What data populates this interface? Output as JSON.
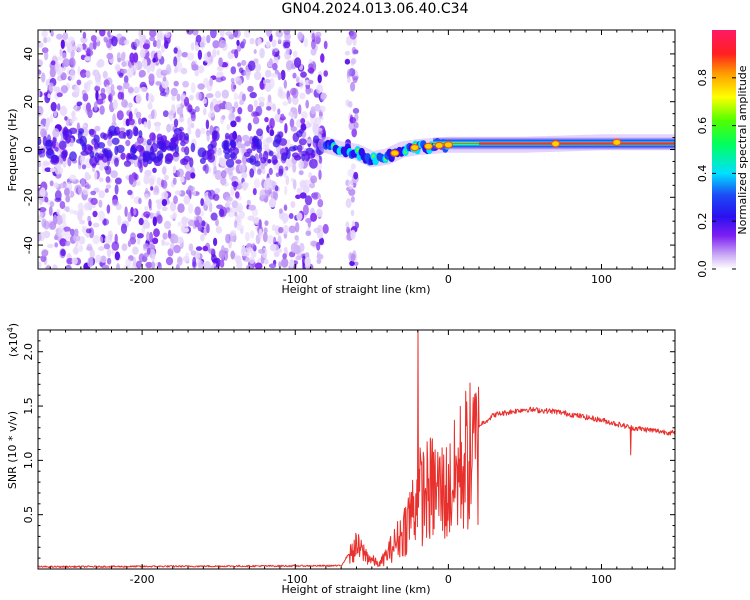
{
  "title": "GN04.2024.013.06.40.C34",
  "chart_data": [
    {
      "type": "heatmap",
      "xlabel": "Height of straight line (km)",
      "ylabel": "Frequency (Hz)",
      "xlim": [
        -268,
        148
      ],
      "ylim": [
        -50,
        50
      ],
      "x_ticks": [
        -200,
        -100,
        0,
        100
      ],
      "y_ticks": [
        -40,
        -20,
        0,
        20,
        40
      ],
      "colorbar": {
        "label": "Normalized spectral amplitude",
        "range": [
          0,
          1
        ],
        "ticks": [
          0.0,
          0.2,
          0.4,
          0.6,
          0.8
        ]
      },
      "features": {
        "noise_region_x": [
          -268,
          -80
        ],
        "isolated_noise_band_x": [
          -66,
          -60
        ],
        "carrier_track": [
          {
            "x": -80,
            "y": 2
          },
          {
            "x": -70,
            "y": 0
          },
          {
            "x": -60,
            "y": -1
          },
          {
            "x": -50,
            "y": -4
          },
          {
            "x": -40,
            "y": -3
          },
          {
            "x": -30,
            "y": 0
          },
          {
            "x": -20,
            "y": 1
          },
          {
            "x": 0,
            "y": 2
          },
          {
            "x": 50,
            "y": 2
          },
          {
            "x": 100,
            "y": 3
          },
          {
            "x": 148,
            "y": 3
          }
        ]
      }
    },
    {
      "type": "line",
      "xlabel": "Height of straight line (km)",
      "ylabel": "SNR (10 * v/v)",
      "exponent_label": "(x10",
      "exponent_power": "4",
      "exponent_close": ")",
      "xlim": [
        -268,
        148
      ],
      "ylim": [
        0,
        2.2
      ],
      "x_ticks": [
        -200,
        -100,
        0,
        100
      ],
      "y_ticks": [
        0.5,
        1.0,
        1.5,
        2.0
      ],
      "y_tick_labels": [
        "0.5",
        "1.0",
        "1.5",
        "2.0"
      ],
      "line_color": "#e8302c",
      "envelope": [
        {
          "x": -268,
          "y": 0.02
        },
        {
          "x": -70,
          "y": 0.03
        },
        {
          "x": -60,
          "y": 0.25
        },
        {
          "x": -50,
          "y": 0.1
        },
        {
          "x": -45,
          "y": 0.05
        },
        {
          "x": -30,
          "y": 0.4
        },
        {
          "x": -20,
          "y": 0.8
        },
        {
          "x": -10,
          "y": 0.9
        },
        {
          "x": 0,
          "y": 0.85
        },
        {
          "x": 10,
          "y": 1.2
        },
        {
          "x": 20,
          "y": 1.32
        },
        {
          "x": 30,
          "y": 1.42
        },
        {
          "x": 50,
          "y": 1.47
        },
        {
          "x": 70,
          "y": 1.45
        },
        {
          "x": 100,
          "y": 1.37
        },
        {
          "x": 120,
          "y": 1.3
        },
        {
          "x": 148,
          "y": 1.25
        }
      ],
      "spikes": [
        {
          "x": -20,
          "y": 2.2
        },
        {
          "x": 18,
          "y": 1.62
        },
        {
          "x": 119,
          "y": 1.05
        }
      ]
    }
  ]
}
